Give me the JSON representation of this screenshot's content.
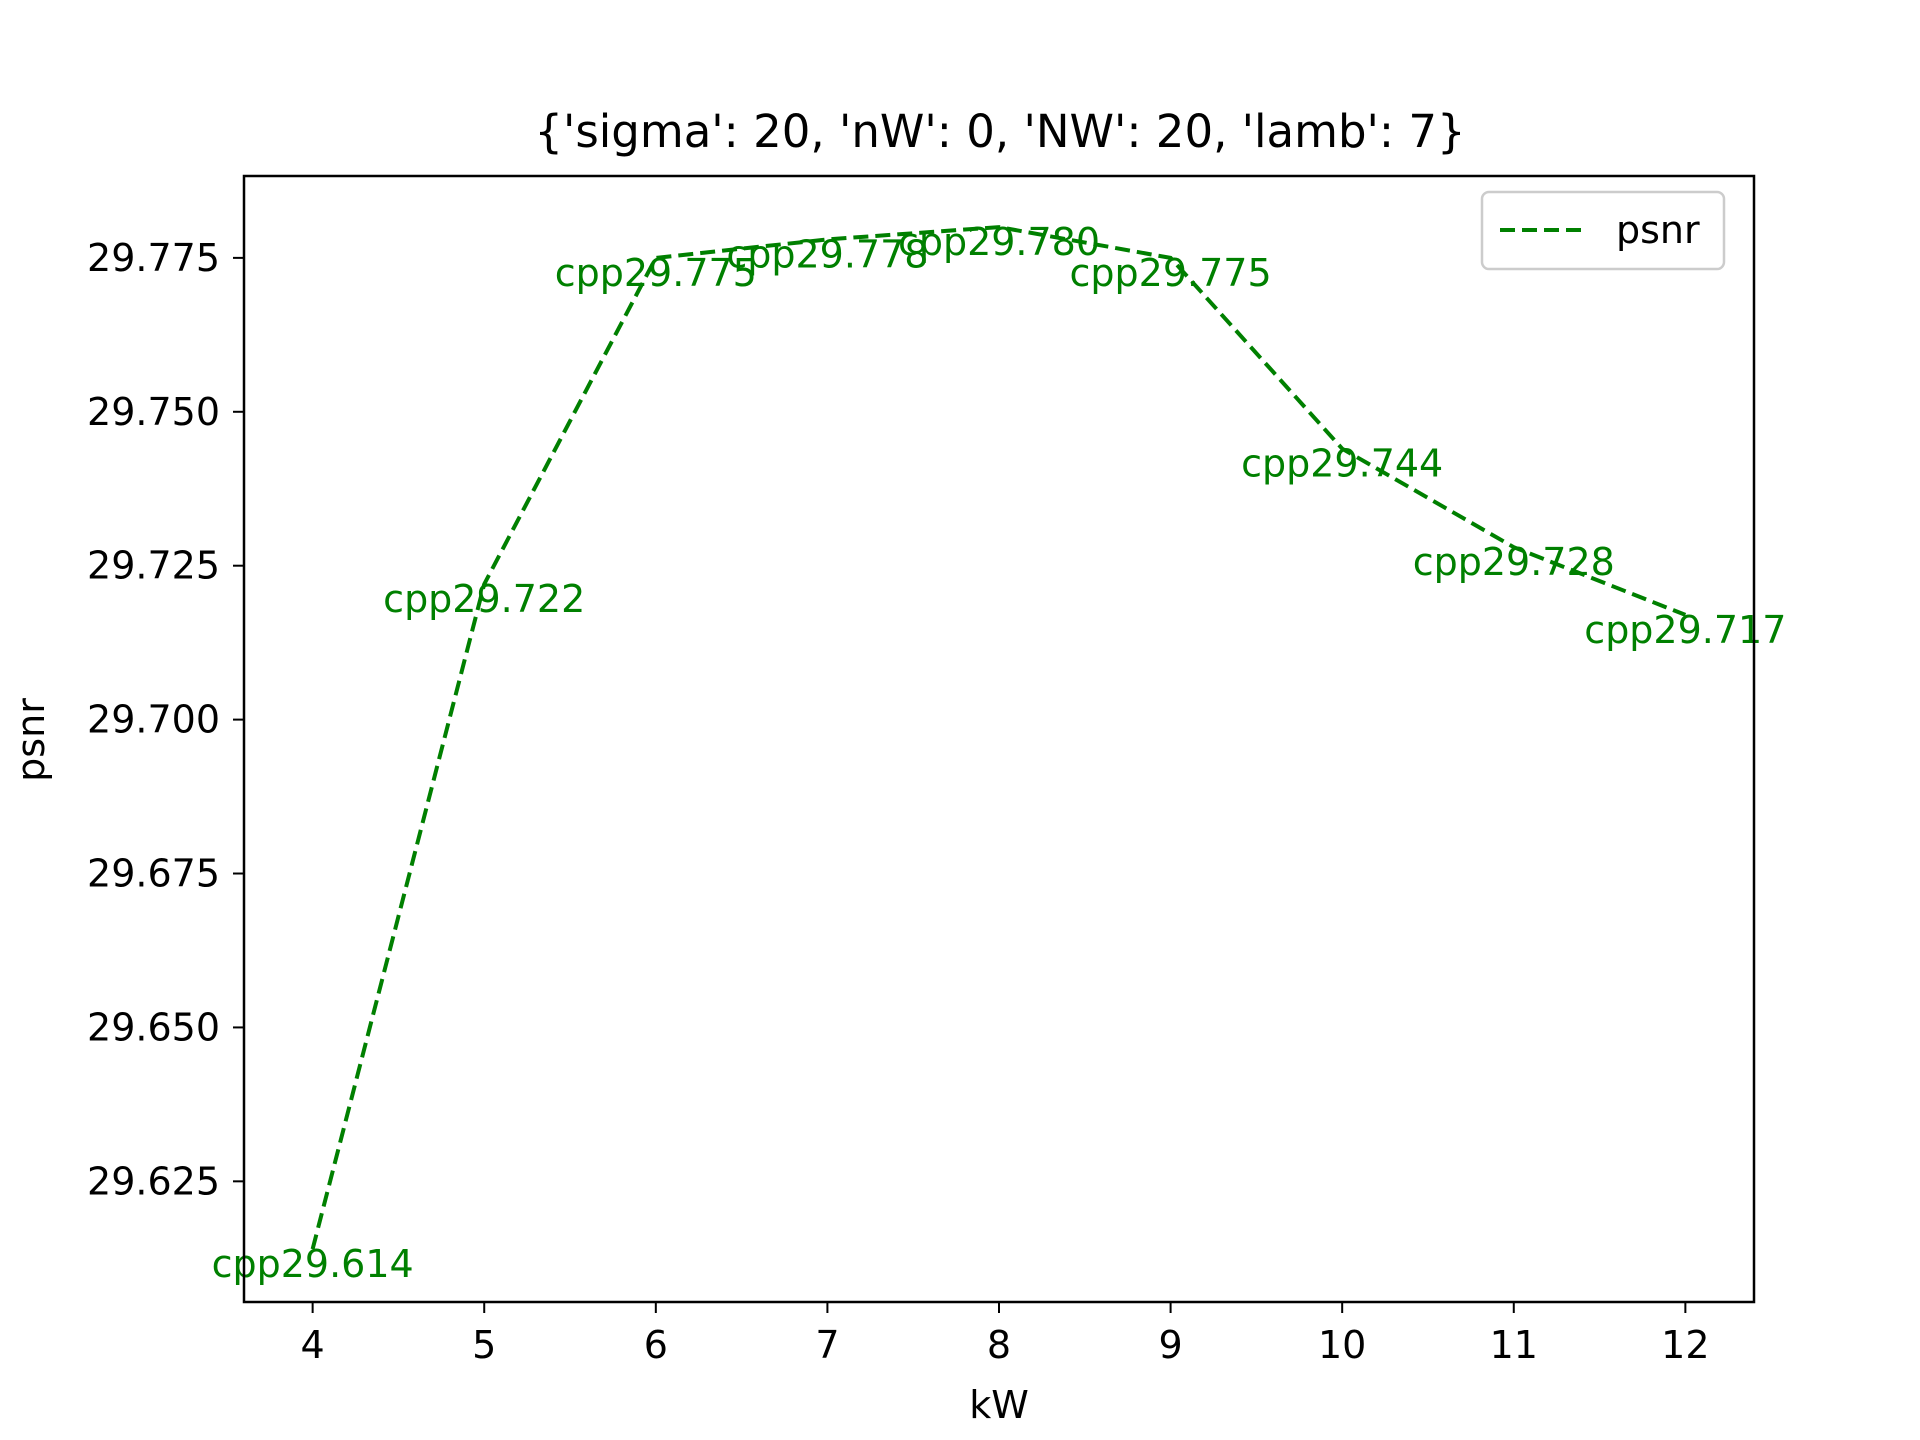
{
  "chart_data": {
    "type": "line",
    "title": "{'sigma': 20, 'nW': 0, 'NW': 20, 'lamb': 7}",
    "xlabel": "kW",
    "ylabel": "psnr",
    "x": [
      4,
      5,
      6,
      7,
      8,
      9,
      10,
      11,
      12
    ],
    "xticks": [
      "4",
      "5",
      "6",
      "7",
      "8",
      "9",
      "10",
      "11",
      "12"
    ],
    "yticks": [
      "29.625",
      "29.650",
      "29.675",
      "29.700",
      "29.725",
      "29.750",
      "29.775"
    ],
    "ytick_values": [
      29.625,
      29.65,
      29.675,
      29.7,
      29.725,
      29.75,
      29.775
    ],
    "xlim": [
      3.6,
      12.4
    ],
    "ylim": [
      29.6054,
      29.7883
    ],
    "grid": false,
    "legend_position": "top-right",
    "series": [
      {
        "name": "psnr",
        "color": "#008000",
        "line_style": "dashed",
        "values": [
          29.614,
          29.722,
          29.775,
          29.778,
          29.78,
          29.775,
          29.744,
          29.728,
          29.717
        ],
        "labels": [
          "cpp29.614",
          "cpp29.722",
          "cpp29.775",
          "cpp29.778",
          "cpp29.780",
          "cpp29.775",
          "cpp29.744",
          "cpp29.728",
          "cpp29.717"
        ]
      }
    ]
  }
}
